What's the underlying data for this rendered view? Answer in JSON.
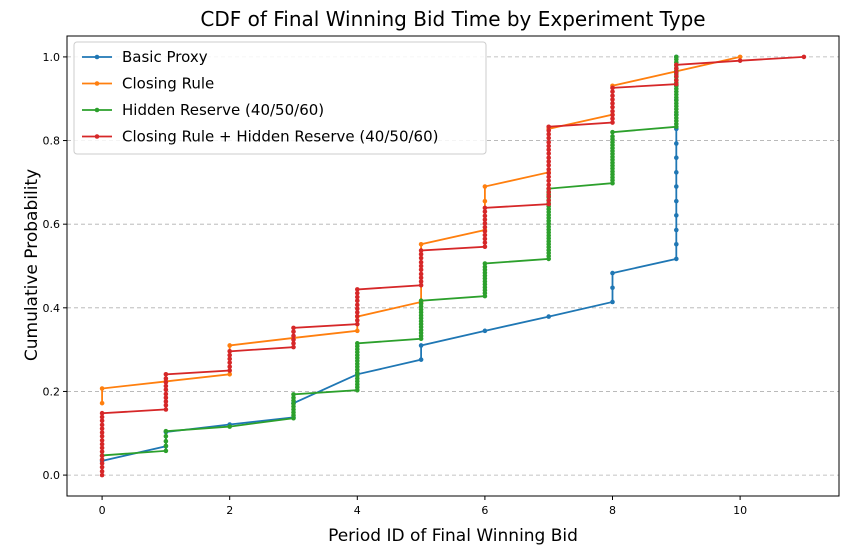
{
  "chart_data": {
    "type": "line",
    "title": "CDF of Final Winning Bid Time by Experiment Type",
    "xlabel": "Period ID of Final Winning Bid",
    "ylabel": "Cumulative Probability",
    "xlim": [
      -0.55,
      11.55
    ],
    "ylim": [
      -0.05,
      1.05
    ],
    "xticks": [
      0,
      2,
      4,
      6,
      8,
      10
    ],
    "yticks": [
      0.0,
      0.2,
      0.4,
      0.6,
      0.8,
      1.0
    ],
    "grid": "y-dashed",
    "legend_position": "top-left",
    "series": [
      {
        "name": "Basic Proxy",
        "color": "#1f77b4",
        "points": [
          [
            0,
            0.034
          ],
          [
            1,
            0.069
          ],
          [
            1,
            0.103
          ],
          [
            2,
            0.121
          ],
          [
            3,
            0.138
          ],
          [
            3,
            0.172
          ],
          [
            4,
            0.241
          ],
          [
            5,
            0.276
          ],
          [
            5,
            0.31
          ],
          [
            6,
            0.345
          ],
          [
            7,
            0.379
          ],
          [
            8,
            0.414
          ],
          [
            8,
            0.448
          ],
          [
            8,
            0.483
          ],
          [
            9,
            0.517
          ],
          [
            9,
            0.552
          ],
          [
            9,
            0.586
          ],
          [
            9,
            0.621
          ],
          [
            9,
            0.655
          ],
          [
            9,
            0.69
          ],
          [
            9,
            0.724
          ],
          [
            9,
            0.759
          ],
          [
            9,
            0.793
          ],
          [
            9,
            0.828
          ],
          [
            9,
            0.862
          ],
          [
            9,
            0.897
          ],
          [
            9,
            0.931
          ],
          [
            9,
            0.966
          ],
          [
            9,
            1.0
          ]
        ]
      },
      {
        "name": "Closing Rule",
        "color": "#ff7f0e",
        "points": [
          [
            0,
            0.172
          ],
          [
            0,
            0.207
          ],
          [
            1,
            0.224
          ],
          [
            2,
            0.241
          ],
          [
            2,
            0.31
          ],
          [
            3,
            0.328
          ],
          [
            4,
            0.345
          ],
          [
            4,
            0.379
          ],
          [
            5,
            0.414
          ],
          [
            5,
            0.552
          ],
          [
            6,
            0.586
          ],
          [
            6,
            0.655
          ],
          [
            6,
            0.69
          ],
          [
            7,
            0.724
          ],
          [
            7,
            0.828
          ],
          [
            8,
            0.862
          ],
          [
            8,
            0.931
          ],
          [
            10,
            1.0
          ]
        ]
      },
      {
        "name": "Hidden Reserve (40/50/60)",
        "color": "#2ca02c",
        "points": [
          [
            0,
            0.047
          ],
          [
            1,
            0.058
          ],
          [
            1,
            0.07
          ],
          [
            1,
            0.081
          ],
          [
            1,
            0.093
          ],
          [
            1,
            0.105
          ],
          [
            2,
            0.116
          ],
          [
            3,
            0.136
          ],
          [
            3,
            0.143
          ],
          [
            3,
            0.15
          ],
          [
            3,
            0.157
          ],
          [
            3,
            0.164
          ],
          [
            3,
            0.171
          ],
          [
            3,
            0.178
          ],
          [
            3,
            0.185
          ],
          [
            3,
            0.193
          ],
          [
            4,
            0.203
          ],
          [
            4,
            0.21
          ],
          [
            4,
            0.217
          ],
          [
            4,
            0.224
          ],
          [
            4,
            0.231
          ],
          [
            4,
            0.238
          ],
          [
            4,
            0.245
          ],
          [
            4,
            0.252
          ],
          [
            4,
            0.259
          ],
          [
            4,
            0.266
          ],
          [
            4,
            0.273
          ],
          [
            4,
            0.28
          ],
          [
            4,
            0.287
          ],
          [
            4,
            0.294
          ],
          [
            4,
            0.301
          ],
          [
            4,
            0.308
          ],
          [
            4,
            0.315
          ],
          [
            5,
            0.326
          ],
          [
            5,
            0.333
          ],
          [
            5,
            0.34
          ],
          [
            5,
            0.347
          ],
          [
            5,
            0.354
          ],
          [
            5,
            0.361
          ],
          [
            5,
            0.368
          ],
          [
            5,
            0.375
          ],
          [
            5,
            0.382
          ],
          [
            5,
            0.389
          ],
          [
            5,
            0.396
          ],
          [
            5,
            0.403
          ],
          [
            5,
            0.41
          ],
          [
            5,
            0.417
          ],
          [
            6,
            0.428
          ],
          [
            6,
            0.435
          ],
          [
            6,
            0.442
          ],
          [
            6,
            0.449
          ],
          [
            6,
            0.456
          ],
          [
            6,
            0.463
          ],
          [
            6,
            0.47
          ],
          [
            6,
            0.477
          ],
          [
            6,
            0.484
          ],
          [
            6,
            0.491
          ],
          [
            6,
            0.498
          ],
          [
            6,
            0.506
          ],
          [
            7,
            0.517
          ],
          [
            7,
            0.524
          ],
          [
            7,
            0.531
          ],
          [
            7,
            0.538
          ],
          [
            7,
            0.545
          ],
          [
            7,
            0.552
          ],
          [
            7,
            0.559
          ],
          [
            7,
            0.566
          ],
          [
            7,
            0.573
          ],
          [
            7,
            0.58
          ],
          [
            7,
            0.587
          ],
          [
            7,
            0.594
          ],
          [
            7,
            0.601
          ],
          [
            7,
            0.608
          ],
          [
            7,
            0.615
          ],
          [
            7,
            0.622
          ],
          [
            7,
            0.629
          ],
          [
            7,
            0.636
          ],
          [
            7,
            0.643
          ],
          [
            7,
            0.65
          ],
          [
            7,
            0.657
          ],
          [
            7,
            0.664
          ],
          [
            7,
            0.671
          ],
          [
            7,
            0.678
          ],
          [
            7,
            0.685
          ],
          [
            8,
            0.698
          ],
          [
            8,
            0.705
          ],
          [
            8,
            0.712
          ],
          [
            8,
            0.719
          ],
          [
            8,
            0.726
          ],
          [
            8,
            0.733
          ],
          [
            8,
            0.74
          ],
          [
            8,
            0.747
          ],
          [
            8,
            0.754
          ],
          [
            8,
            0.761
          ],
          [
            8,
            0.768
          ],
          [
            8,
            0.775
          ],
          [
            8,
            0.782
          ],
          [
            8,
            0.789
          ],
          [
            8,
            0.796
          ],
          [
            8,
            0.803
          ],
          [
            8,
            0.81
          ],
          [
            8,
            0.82
          ],
          [
            9,
            0.833
          ],
          [
            9,
            0.84
          ],
          [
            9,
            0.847
          ],
          [
            9,
            0.854
          ],
          [
            9,
            0.861
          ],
          [
            9,
            0.868
          ],
          [
            9,
            0.875
          ],
          [
            9,
            0.882
          ],
          [
            9,
            0.889
          ],
          [
            9,
            0.896
          ],
          [
            9,
            0.903
          ],
          [
            9,
            0.91
          ],
          [
            9,
            0.917
          ],
          [
            9,
            0.924
          ],
          [
            9,
            0.931
          ],
          [
            9,
            0.938
          ],
          [
            9,
            0.945
          ],
          [
            9,
            0.952
          ],
          [
            9,
            0.959
          ],
          [
            9,
            0.966
          ],
          [
            9,
            0.973
          ],
          [
            9,
            0.98
          ],
          [
            9,
            0.987
          ],
          [
            9,
            0.994
          ],
          [
            9,
            1.0
          ]
        ]
      },
      {
        "name": "Closing Rule + Hidden Reserve (40/50/60)",
        "color": "#d62728",
        "points": [
          [
            0,
            0.0
          ],
          [
            0,
            0.009
          ],
          [
            0,
            0.019
          ],
          [
            0,
            0.028
          ],
          [
            0,
            0.037
          ],
          [
            0,
            0.046
          ],
          [
            0,
            0.056
          ],
          [
            0,
            0.065
          ],
          [
            0,
            0.074
          ],
          [
            0,
            0.083
          ],
          [
            0,
            0.093
          ],
          [
            0,
            0.102
          ],
          [
            0,
            0.111
          ],
          [
            0,
            0.12
          ],
          [
            0,
            0.13
          ],
          [
            0,
            0.139
          ],
          [
            0,
            0.148
          ],
          [
            1,
            0.157
          ],
          [
            1,
            0.167
          ],
          [
            1,
            0.176
          ],
          [
            1,
            0.185
          ],
          [
            1,
            0.194
          ],
          [
            1,
            0.204
          ],
          [
            1,
            0.213
          ],
          [
            1,
            0.222
          ],
          [
            1,
            0.231
          ],
          [
            1,
            0.241
          ],
          [
            2,
            0.25
          ],
          [
            2,
            0.259
          ],
          [
            2,
            0.269
          ],
          [
            2,
            0.278
          ],
          [
            2,
            0.287
          ],
          [
            2,
            0.296
          ],
          [
            3,
            0.306
          ],
          [
            3,
            0.315
          ],
          [
            3,
            0.324
          ],
          [
            3,
            0.333
          ],
          [
            3,
            0.343
          ],
          [
            3,
            0.352
          ],
          [
            4,
            0.361
          ],
          [
            4,
            0.37
          ],
          [
            4,
            0.38
          ],
          [
            4,
            0.389
          ],
          [
            4,
            0.398
          ],
          [
            4,
            0.407
          ],
          [
            4,
            0.417
          ],
          [
            4,
            0.426
          ],
          [
            4,
            0.435
          ],
          [
            4,
            0.444
          ],
          [
            5,
            0.454
          ],
          [
            5,
            0.463
          ],
          [
            5,
            0.472
          ],
          [
            5,
            0.481
          ],
          [
            5,
            0.491
          ],
          [
            5,
            0.5
          ],
          [
            5,
            0.509
          ],
          [
            5,
            0.519
          ],
          [
            5,
            0.528
          ],
          [
            5,
            0.537
          ],
          [
            6,
            0.546
          ],
          [
            6,
            0.556
          ],
          [
            6,
            0.565
          ],
          [
            6,
            0.574
          ],
          [
            6,
            0.583
          ],
          [
            6,
            0.593
          ],
          [
            6,
            0.602
          ],
          [
            6,
            0.611
          ],
          [
            6,
            0.62
          ],
          [
            6,
            0.63
          ],
          [
            6,
            0.639
          ],
          [
            7,
            0.648
          ],
          [
            7,
            0.657
          ],
          [
            7,
            0.667
          ],
          [
            7,
            0.676
          ],
          [
            7,
            0.685
          ],
          [
            7,
            0.694
          ],
          [
            7,
            0.704
          ],
          [
            7,
            0.713
          ],
          [
            7,
            0.722
          ],
          [
            7,
            0.731
          ],
          [
            7,
            0.741
          ],
          [
            7,
            0.75
          ],
          [
            7,
            0.759
          ],
          [
            7,
            0.769
          ],
          [
            7,
            0.778
          ],
          [
            7,
            0.787
          ],
          [
            7,
            0.796
          ],
          [
            7,
            0.806
          ],
          [
            7,
            0.815
          ],
          [
            7,
            0.824
          ],
          [
            7,
            0.833
          ],
          [
            8,
            0.843
          ],
          [
            8,
            0.852
          ],
          [
            8,
            0.861
          ],
          [
            8,
            0.87
          ],
          [
            8,
            0.88
          ],
          [
            8,
            0.889
          ],
          [
            8,
            0.898
          ],
          [
            8,
            0.907
          ],
          [
            8,
            0.917
          ],
          [
            8,
            0.926
          ],
          [
            9,
            0.935
          ],
          [
            9,
            0.944
          ],
          [
            9,
            0.954
          ],
          [
            9,
            0.963
          ],
          [
            9,
            0.972
          ],
          [
            9,
            0.981
          ],
          [
            10,
            0.991
          ],
          [
            11,
            1.0
          ]
        ]
      }
    ]
  }
}
